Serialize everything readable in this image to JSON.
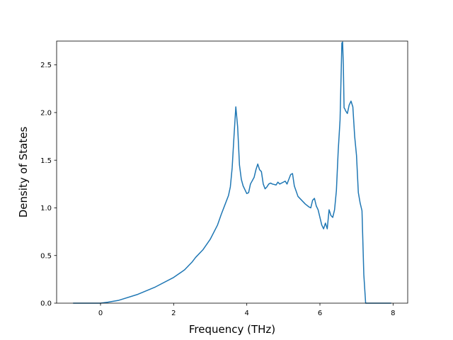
{
  "chart_data": {
    "type": "line",
    "title": "",
    "xlabel": "Frequency (THz)",
    "ylabel": "Density of States",
    "xlim": [
      -1.2,
      8.4
    ],
    "ylim": [
      0.0,
      2.75
    ],
    "xticks": [
      0,
      2,
      4,
      6,
      8
    ],
    "xtick_labels": [
      "0",
      "2",
      "4",
      "6",
      "8"
    ],
    "yticks": [
      0.0,
      0.5,
      1.0,
      1.5,
      2.0,
      2.5
    ],
    "ytick_labels": [
      "0.0",
      "0.5",
      "1.0",
      "1.5",
      "2.0",
      "2.5"
    ],
    "grid": false,
    "legend": "none",
    "series_color": "#1f77b4",
    "series": [
      {
        "x": [
          -0.75,
          0.0,
          0.2,
          0.5,
          1.0,
          1.5,
          2.0,
          2.3,
          2.5,
          2.6,
          2.8,
          3.0,
          3.2,
          3.3,
          3.4,
          3.5,
          3.55,
          3.6,
          3.65,
          3.7,
          3.75,
          3.8,
          3.85,
          3.9,
          4.0,
          4.05,
          4.1,
          4.2,
          4.25,
          4.3,
          4.35,
          4.4,
          4.45,
          4.5,
          4.55,
          4.6,
          4.65,
          4.7,
          4.8,
          4.85,
          4.9,
          5.0,
          5.05,
          5.1,
          5.15,
          5.2,
          5.25,
          5.3,
          5.4,
          5.5,
          5.6,
          5.7,
          5.75,
          5.8,
          5.85,
          5.9,
          5.95,
          6.0,
          6.05,
          6.1,
          6.15,
          6.2,
          6.25,
          6.3,
          6.35,
          6.4,
          6.45,
          6.5,
          6.55,
          6.6,
          6.62,
          6.64,
          6.66,
          6.68,
          6.7,
          6.75,
          6.8,
          6.85,
          6.9,
          6.95,
          7.0,
          7.05,
          7.1,
          7.15,
          7.2,
          7.25,
          7.3,
          7.4,
          7.95
        ],
        "y": [
          0.0,
          0.0,
          0.01,
          0.03,
          0.09,
          0.17,
          0.27,
          0.35,
          0.43,
          0.48,
          0.56,
          0.67,
          0.82,
          0.93,
          1.03,
          1.13,
          1.22,
          1.42,
          1.75,
          2.06,
          1.85,
          1.45,
          1.3,
          1.23,
          1.15,
          1.16,
          1.25,
          1.32,
          1.4,
          1.46,
          1.4,
          1.38,
          1.25,
          1.2,
          1.22,
          1.25,
          1.26,
          1.25,
          1.24,
          1.27,
          1.25,
          1.27,
          1.28,
          1.25,
          1.3,
          1.35,
          1.36,
          1.23,
          1.12,
          1.08,
          1.04,
          1.01,
          1.0,
          1.08,
          1.1,
          1.02,
          0.98,
          0.9,
          0.82,
          0.78,
          0.84,
          0.78,
          0.98,
          0.92,
          0.9,
          0.98,
          1.18,
          1.6,
          1.92,
          2.73,
          2.74,
          2.5,
          2.05,
          2.04,
          2.02,
          1.99,
          2.08,
          2.12,
          2.06,
          1.75,
          1.55,
          1.16,
          1.05,
          0.97,
          0.3,
          0.0,
          0.0,
          0.0,
          0.0
        ]
      }
    ]
  }
}
